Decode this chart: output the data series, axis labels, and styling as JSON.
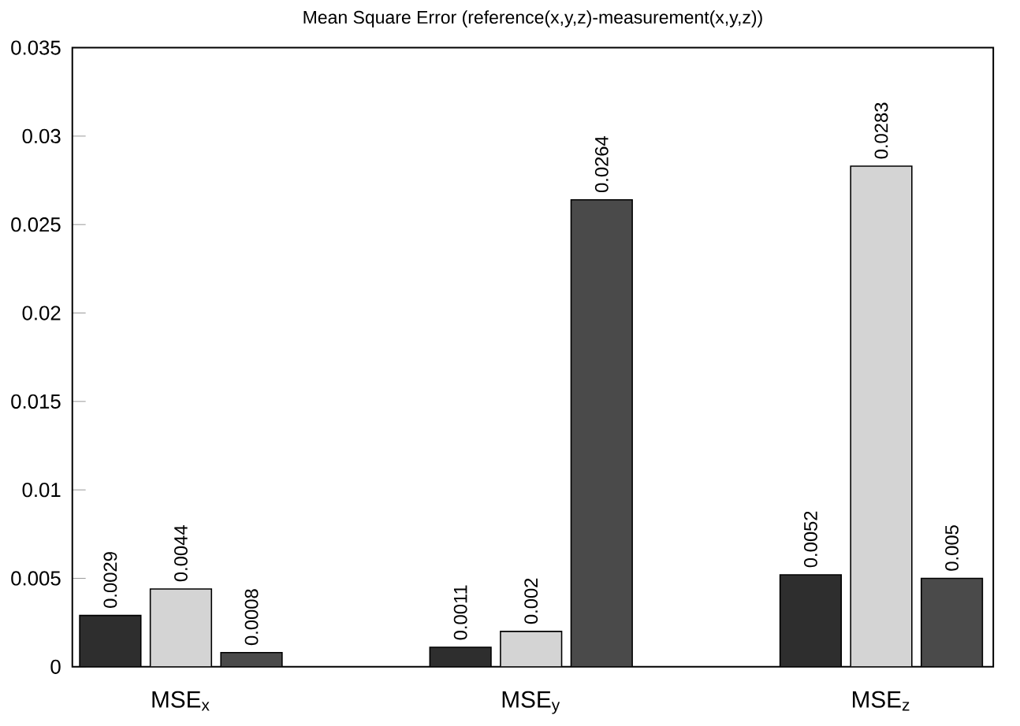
{
  "chart_data": {
    "type": "bar",
    "title": "Mean Square Error (reference(x,y,z)-measurement(x,y,z))",
    "categories": [
      "MSE$_{x}$",
      "MSE$_{y}$",
      "MSE$_{z}$"
    ],
    "series": [
      {
        "color": "#2e2e2e",
        "values": [
          0.0029,
          0.0011,
          0.0052
        ]
      },
      {
        "color": "#d4d4d4",
        "values": [
          0.0044,
          0.002,
          0.0283
        ]
      },
      {
        "color": "#4a4a4a",
        "values": [
          0.0008,
          0.0264,
          0.005
        ]
      }
    ],
    "ylim": [
      0,
      0.035
    ],
    "yticks": [
      0,
      0.005,
      0.01,
      0.015,
      0.02,
      0.025,
      0.03,
      0.035
    ],
    "data_labels": true,
    "grid": false
  }
}
